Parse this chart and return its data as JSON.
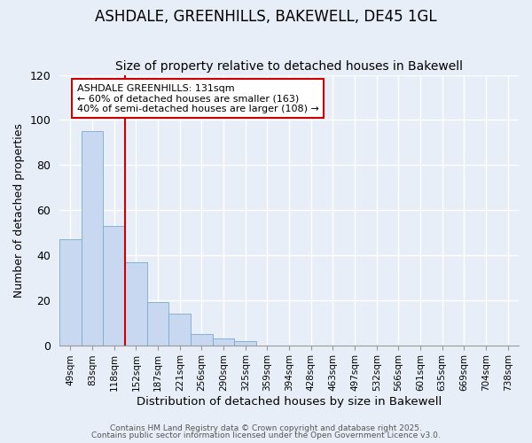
{
  "title": "ASHDALE, GREENHILLS, BAKEWELL, DE45 1GL",
  "subtitle": "Size of property relative to detached houses in Bakewell",
  "xlabel": "Distribution of detached houses by size in Bakewell",
  "ylabel": "Number of detached properties",
  "bin_labels": [
    "49sqm",
    "83sqm",
    "118sqm",
    "152sqm",
    "187sqm",
    "221sqm",
    "256sqm",
    "290sqm",
    "325sqm",
    "359sqm",
    "394sqm",
    "428sqm",
    "463sqm",
    "497sqm",
    "532sqm",
    "566sqm",
    "601sqm",
    "635sqm",
    "669sqm",
    "704sqm",
    "738sqm"
  ],
  "bar_heights": [
    47,
    95,
    53,
    37,
    19,
    14,
    5,
    3,
    2,
    0,
    0,
    0,
    0,
    0,
    0,
    0,
    0,
    0,
    0,
    0,
    0
  ],
  "bar_color": "#c8d8f0",
  "bar_edge_color": "#7aaad0",
  "vline_x_index": 2,
  "vline_color": "#cc0000",
  "annotation_text": "ASHDALE GREENHILLS: 131sqm\n← 60% of detached houses are smaller (163)\n40% of semi-detached houses are larger (108) →",
  "annotation_box_color": "#ffffff",
  "annotation_box_edge_color": "#cc0000",
  "annotation_fontsize": 8.0,
  "ylim": [
    0,
    120
  ],
  "yticks": [
    0,
    20,
    40,
    60,
    80,
    100,
    120
  ],
  "background_color": "#e8eef8",
  "grid_color": "#ffffff",
  "footer_line1": "Contains HM Land Registry data © Crown copyright and database right 2025.",
  "footer_line2": "Contains public sector information licensed under the Open Government Licence v3.0.",
  "title_fontsize": 12,
  "subtitle_fontsize": 10
}
